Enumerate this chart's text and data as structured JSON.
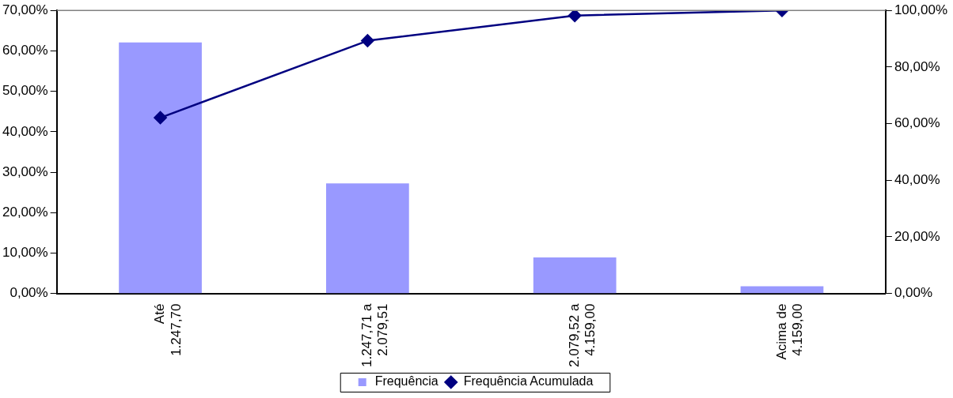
{
  "chart_data": {
    "type": "bar",
    "categories": [
      "Até\n1.247,70",
      "1.247,71 a\n2.079,51",
      "2.079,52 a\n4.159,00",
      "Acima de\n4.159,00"
    ],
    "series": [
      {
        "name": "Frequência",
        "color": "#9999ff",
        "values": [
          62.1,
          27.2,
          8.9,
          1.8
        ]
      },
      {
        "name": "Frequência Acumulada",
        "type": "line",
        "axis": "y2",
        "color": "#000080",
        "values": [
          62.1,
          89.3,
          98.2,
          100
        ]
      }
    ],
    "ylim": [
      0,
      70
    ],
    "yticks": [
      {
        "value": 0,
        "label": "0,00%"
      },
      {
        "value": 10,
        "label": "10,00%"
      },
      {
        "value": 20,
        "label": "20,00%"
      },
      {
        "value": 30,
        "label": "30,00%"
      },
      {
        "value": 40,
        "label": "40,00%"
      },
      {
        "value": 50,
        "label": "50,00%"
      },
      {
        "value": 60,
        "label": "60,00%"
      },
      {
        "value": 70,
        "label": "70,00%"
      }
    ],
    "y2lim": [
      0,
      100
    ],
    "y2ticks": [
      {
        "value": 0,
        "label": "0,00%"
      },
      {
        "value": 20,
        "label": "20,00%"
      },
      {
        "value": 40,
        "label": "40,00%"
      },
      {
        "value": 60,
        "label": "60,00%"
      },
      {
        "value": 80,
        "label": "80,00%"
      },
      {
        "value": 100,
        "label": "100,00%"
      }
    ],
    "grid": false,
    "legend": "bottom",
    "marker": "diamond",
    "line_style": "solid"
  }
}
